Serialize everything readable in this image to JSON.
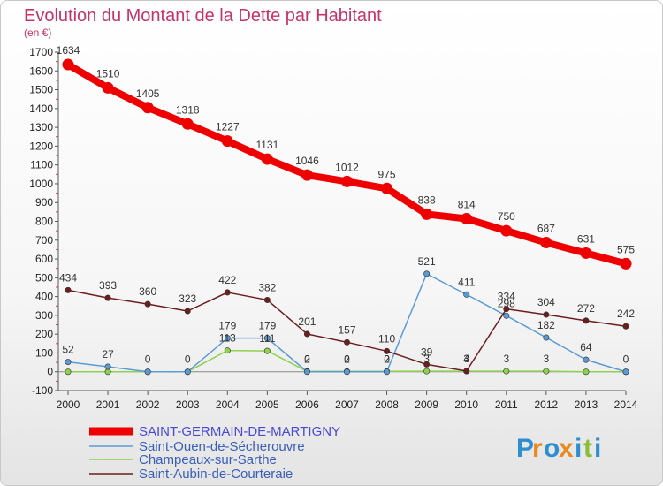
{
  "header": {
    "title": "Evolution du Montant de la Dette par Habitant",
    "unit": "(en €)"
  },
  "logo": {
    "letters": [
      "P",
      "r",
      "o",
      "x",
      "i",
      "t",
      "i"
    ],
    "colors": [
      "#2e8fd0",
      "#e98a1c",
      "#2e8fd0",
      "#e98a1c",
      "#2e8fd0",
      "#8bbd3a",
      "#2e8fd0"
    ]
  },
  "chart_data": {
    "type": "line",
    "title": "Evolution du Montant de la Dette par Habitant",
    "subtitle": "(en €)",
    "x": [
      2000,
      2001,
      2002,
      2003,
      2004,
      2005,
      2006,
      2007,
      2008,
      2009,
      2010,
      2011,
      2012,
      2013,
      2014
    ],
    "ylim": [
      -100,
      1700
    ],
    "yticks": [
      -100,
      0,
      100,
      200,
      300,
      400,
      500,
      600,
      700,
      800,
      900,
      1000,
      1100,
      1200,
      1300,
      1400,
      1500,
      1600,
      1700
    ],
    "grid": false,
    "legend_position": "bottom-left",
    "series": [
      {
        "name": "SAINT-GERMAIN-DE-MARTIGNY",
        "color": "#ee0000",
        "values": [
          1634,
          1510,
          1405,
          1318,
          1227,
          1131,
          1046,
          1012,
          975,
          838,
          814,
          750,
          687,
          631,
          575
        ],
        "labels": [
          "1634",
          "1510",
          "1405",
          "1318",
          "1227",
          "1131",
          "1046",
          "1012",
          "975",
          "838",
          "814",
          "750",
          "687",
          "631",
          "575"
        ]
      },
      {
        "name": "Saint-Ouen-de-Sécherouvre",
        "color": "#5b9bd5",
        "values": [
          52,
          27,
          0,
          0,
          179,
          179,
          0,
          0,
          0,
          521,
          411,
          298,
          182,
          64,
          0
        ],
        "labels": [
          "52",
          "27",
          "0",
          "0",
          "179",
          "179",
          "0",
          "0",
          "0",
          "521",
          "411",
          "298",
          "182",
          "64",
          "0"
        ]
      },
      {
        "name": "Champeaux-sur-Sarthe",
        "color": "#8fd14f",
        "values": [
          0,
          0,
          0,
          0,
          113,
          111,
          2,
          2,
          2,
          3,
          3,
          3,
          3,
          0,
          0
        ],
        "labels": [
          "",
          "",
          "",
          "",
          "113",
          "111",
          "2",
          "2",
          "2",
          "3",
          "3",
          "3",
          "3",
          "",
          ""
        ]
      },
      {
        "name": "Saint-Aubin-de-Courteraie",
        "color": "#6b1e1e",
        "values": [
          434,
          393,
          360,
          323,
          422,
          382,
          201,
          157,
          110,
          39,
          4,
          334,
          304,
          272,
          242
        ],
        "labels": [
          "434",
          "393",
          "360",
          "323",
          "422",
          "382",
          "201",
          "157",
          "110",
          "39",
          "4",
          "334",
          "304",
          "272",
          "242"
        ]
      }
    ]
  }
}
